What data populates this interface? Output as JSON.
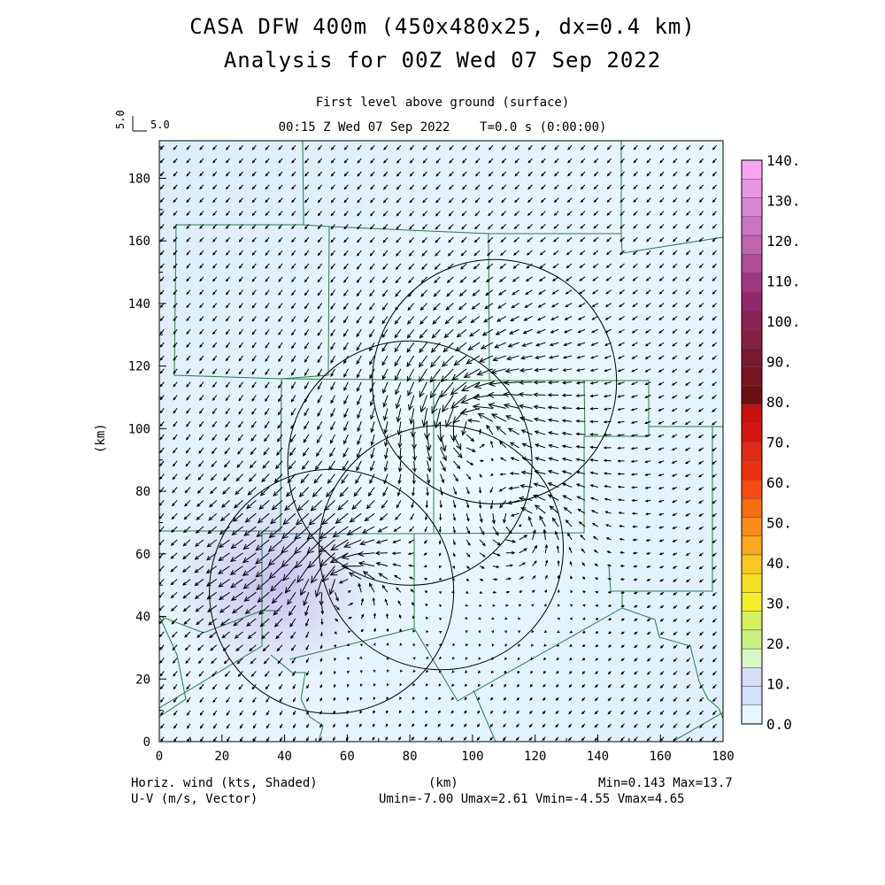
{
  "chart_data": {
    "type": "vector-field",
    "title": "CASA DFW 400m (450x480x25, dx=0.4 km)",
    "subtitle": "Analysis for 00Z Wed 07 Sep 2022",
    "level": "First level above ground (surface)",
    "time_label": "00:15 Z Wed 07 Sep 2022    T=0.0 s (0:00:00)",
    "ref_vector_label": "5.0",
    "ref_vector_side_label": "5.0",
    "xlabel": "(km)",
    "ylabel": "(km)",
    "xlim": [
      0,
      180
    ],
    "ylim": [
      0,
      192
    ],
    "x_ticks": [
      "0",
      "20",
      "40",
      "60",
      "80",
      "100",
      "120",
      "140",
      "160",
      "180"
    ],
    "y_ticks": [
      "0",
      "20",
      "40",
      "60",
      "80",
      "100",
      "120",
      "140",
      "160",
      "180"
    ],
    "bottom_left_line1": "Horiz. wind (kts, Shaded)",
    "bottom_left_line2": "U-V (m/s, Vector)",
    "min_max": "Min=0.143 Max=13.7",
    "uv_stats": "Umin=-7.00 Umax=2.61 Vmin=-4.55 Vmax=4.65",
    "colorbar": {
      "labels": [
        "0.0",
        "10.",
        "20.",
        "30.",
        "40.",
        "50.",
        "60.",
        "70.",
        "80.",
        "90.",
        "100.",
        "110.",
        "120.",
        "130.",
        "140."
      ],
      "colors": [
        "#e6f8fc",
        "#cfe2f8",
        "#d6dcf6",
        "#d8f7c4",
        "#c8f080",
        "#d6f060",
        "#f2f028",
        "#f6e020",
        "#f8c820",
        "#fca81c",
        "#fb8c1a",
        "#f86c10",
        "#f84a10",
        "#ee3010",
        "#e22810",
        "#d81810",
        "#c81010",
        "#6e1010",
        "#761420",
        "#7e1830",
        "#862040",
        "#8a2250",
        "#92286a",
        "#a0387e",
        "#b04e98",
        "#c064ae",
        "#cc74c4",
        "#dc86d6",
        "#ea96e2",
        "#f8a6f0"
      ]
    },
    "radars": [
      {
        "x": 107,
        "y": 115
      },
      {
        "x": 80,
        "y": 89
      },
      {
        "x": 90,
        "y": 62
      },
      {
        "x": 55,
        "y": 48
      }
    ],
    "radar_radius_km": 39,
    "colors": {
      "boundary": "#208040",
      "circle": "#000000",
      "vector": "#000000"
    }
  }
}
